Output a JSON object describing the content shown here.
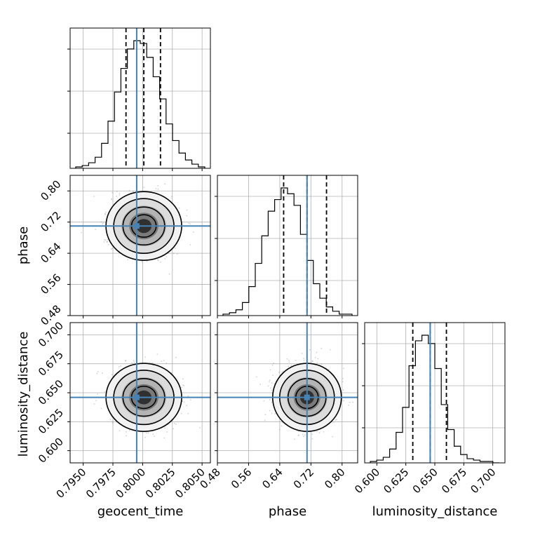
{
  "chart_data": {
    "type": "corner",
    "parameters": [
      "geocent_time",
      "phase",
      "luminosity_distance"
    ],
    "truths": {
      "geocent_time": 0.7995,
      "phase": 0.71,
      "luminosity_distance": 0.646
    },
    "axis_labels": {
      "x": [
        "geocent_time",
        "phase",
        "luminosity_distance"
      ],
      "y": [
        "phase",
        "luminosity_distance"
      ]
    },
    "ranges": {
      "geocent_time": [
        0.7939,
        0.8057
      ],
      "phase": [
        0.48,
        0.84
      ],
      "luminosity_distance": [
        0.5895,
        0.7105
      ]
    },
    "ticks": {
      "geocent_time": [
        "0.7950",
        "0.7975",
        "0.8000",
        "0.8025",
        "0.8050"
      ],
      "phase": [
        "0.48",
        "0.56",
        "0.64",
        "0.72",
        "0.80"
      ],
      "luminosity_distance": [
        "0.600",
        "0.625",
        "0.650",
        "0.675",
        "0.700"
      ]
    },
    "histograms": {
      "geocent_time": {
        "bins": 20,
        "counts": [
          1,
          2,
          4,
          8,
          18,
          34,
          55,
          72,
          86,
          92,
          90,
          80,
          66,
          50,
          32,
          20,
          11,
          6,
          3,
          1
        ],
        "quantiles": [
          0.7986,
          0.8001,
          0.8015
        ]
      },
      "phase": {
        "bins": 20,
        "counts": [
          1,
          2,
          4,
          9,
          20,
          36,
          55,
          72,
          80,
          88,
          84,
          76,
          56,
          38,
          22,
          12,
          6,
          3,
          1,
          1
        ],
        "quantiles": [
          0.65,
          0.71,
          0.76
        ]
      },
      "luminosity_distance": {
        "bins": 20,
        "counts": [
          1,
          2,
          4,
          10,
          22,
          40,
          70,
          88,
          92,
          86,
          68,
          42,
          24,
          12,
          6,
          3,
          2,
          1,
          1,
          0
        ],
        "quantiles": [
          0.631,
          0.646,
          0.66
        ]
      }
    },
    "posterior_2d": {
      "center": {
        "geocent_time": 0.8001,
        "phase": 0.71,
        "luminosity_distance": 0.646
      },
      "std": {
        "geocent_time": 0.0013,
        "phase": 0.036,
        "luminosity_distance": 0.012
      }
    },
    "grid": true,
    "colors": {
      "truth": "#4682b4",
      "line": "#000000",
      "quantile": "#000000",
      "grid": "#b0b0b0",
      "samples": "#7f7f7f"
    }
  }
}
